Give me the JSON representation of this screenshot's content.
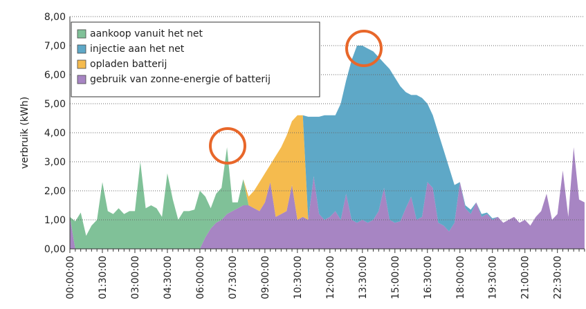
{
  "chart_data": {
    "type": "stacked_area",
    "y_label": "verbruik (kWh)",
    "categories": [
      "00:00:00",
      null,
      null,
      null,
      null,
      null,
      "01:30:00",
      null,
      null,
      null,
      null,
      null,
      "03:00:00",
      null,
      null,
      null,
      null,
      null,
      "04:30:00",
      null,
      null,
      null,
      null,
      null,
      "06:00:00",
      null,
      null,
      null,
      null,
      null,
      "07:30:00",
      null,
      null,
      null,
      null,
      null,
      "09:00:00",
      null,
      null,
      null,
      null,
      null,
      "10:30:00",
      null,
      null,
      null,
      null,
      null,
      "12:00:00",
      null,
      null,
      null,
      null,
      null,
      "13:30:00",
      null,
      null,
      null,
      null,
      null,
      "15:00:00",
      null,
      null,
      null,
      null,
      null,
      "16:30:00",
      null,
      null,
      null,
      null,
      null,
      "18:00:00",
      null,
      null,
      null,
      null,
      null,
      "19:30:00",
      null,
      null,
      null,
      null,
      null,
      "21:00:00",
      null,
      null,
      null,
      null,
      null,
      "22:30:00",
      null,
      null,
      null,
      null,
      null
    ],
    "series": [
      {
        "name": "aankoop vanuit het net",
        "color": "#80c198",
        "values": [
          0,
          0.95,
          1.25,
          0.45,
          0.8,
          1.0,
          2.3,
          1.3,
          1.2,
          1.4,
          1.2,
          1.3,
          1.3,
          3.0,
          1.4,
          1.5,
          1.4,
          1.1,
          2.6,
          1.7,
          1.0,
          1.3,
          1.3,
          1.35,
          2.0,
          1.4,
          0.7,
          1.0,
          1.1,
          2.3,
          0.3,
          0.2,
          0.9,
          0,
          0,
          0,
          0,
          0,
          0,
          0,
          0,
          0,
          0,
          0,
          0,
          0,
          0,
          0,
          0,
          0,
          0,
          0,
          0,
          0,
          0,
          0,
          0,
          0,
          0,
          0,
          0,
          0,
          0,
          0,
          0,
          0,
          0,
          0,
          0,
          0,
          0,
          0,
          0,
          0,
          0,
          0,
          0,
          0,
          0,
          0,
          0,
          0,
          0,
          0,
          0,
          0,
          0,
          0,
          0,
          0,
          0,
          0,
          0,
          0,
          0,
          0
        ]
      },
      {
        "name": "injectie aan het net",
        "color": "#5ea8c7",
        "values": [
          0,
          0,
          0,
          0,
          0,
          0,
          0,
          0,
          0,
          0,
          0,
          0,
          0,
          0,
          0,
          0,
          0,
          0,
          0,
          0,
          0,
          0,
          0,
          0,
          0,
          0,
          0,
          0,
          0,
          0,
          0,
          0,
          0,
          0,
          0,
          0,
          0,
          0,
          0,
          0,
          0,
          0,
          0,
          0,
          3.55,
          2.05,
          3.35,
          3.6,
          3.5,
          3.3,
          4.0,
          3.9,
          5.5,
          6.1,
          6.0,
          6.0,
          5.8,
          5.3,
          4.3,
          5.2,
          5.0,
          4.65,
          4.0,
          3.5,
          4.3,
          4.1,
          2.7,
          2.5,
          3.1,
          2.6,
          2.2,
          1.3,
          0,
          0.1,
          0.15,
          0,
          0.1,
          0.05,
          0.05,
          0,
          0,
          0,
          0,
          0,
          0,
          0,
          0,
          0,
          0,
          0,
          0,
          0,
          0,
          0,
          0,
          0
        ]
      },
      {
        "name": "opladen batterij",
        "color": "#f5bb4e",
        "values": [
          0,
          0,
          0,
          0,
          0,
          0,
          0,
          0,
          0,
          0,
          0,
          0,
          0,
          0,
          0,
          0,
          0,
          0,
          0,
          0,
          0,
          0,
          0,
          0,
          0,
          0,
          0,
          0,
          0,
          0,
          0,
          0,
          0,
          0.3,
          0.6,
          1.0,
          1.0,
          0.6,
          2.1,
          2.3,
          2.6,
          2.2,
          3.6,
          3.5,
          0,
          0,
          0,
          0,
          0,
          0,
          0,
          0,
          0,
          0,
          0,
          0,
          0,
          0,
          0,
          0,
          0,
          0,
          0,
          0,
          0,
          0,
          0,
          0,
          0,
          0,
          0,
          0,
          0,
          0,
          0,
          0,
          0,
          0,
          0,
          0,
          0,
          0,
          0,
          0,
          0,
          0,
          0,
          0,
          0,
          0,
          0,
          0,
          0,
          0,
          0,
          0
        ]
      },
      {
        "name": "gebruik van zonne-energie of batterij",
        "color": "#a785c3",
        "values": [
          1.1,
          0,
          0,
          0,
          0,
          0,
          0,
          0,
          0,
          0,
          0,
          0,
          0,
          0,
          0,
          0,
          0,
          0,
          0,
          0,
          0,
          0,
          0,
          0,
          0,
          0.4,
          0.7,
          0.9,
          1.0,
          1.2,
          1.3,
          1.4,
          1.5,
          1.5,
          1.4,
          1.3,
          1.6,
          2.3,
          1.1,
          1.2,
          1.3,
          2.2,
          1.0,
          1.1,
          1.0,
          2.5,
          1.2,
          1.0,
          1.1,
          1.3,
          1.0,
          1.9,
          1.0,
          0.9,
          1.0,
          0.9,
          1.0,
          1.3,
          2.1,
          1.0,
          0.9,
          0.95,
          1.4,
          1.8,
          1.0,
          1.1,
          2.3,
          2.1,
          0.9,
          0.8,
          0.6,
          0.9,
          2.3,
          1.4,
          1.2,
          1.6,
          1.1,
          1.2,
          1.0,
          1.1,
          0.9,
          1.0,
          1.1,
          0.9,
          1.0,
          0.8,
          1.1,
          1.3,
          1.9,
          1.0,
          1.2,
          2.7,
          1.1,
          3.5,
          1.7,
          1.6
        ]
      }
    ],
    "stack_order": [
      3,
      0,
      2,
      1
    ],
    "ylim": [
      0,
      8
    ],
    "yticks": [
      {
        "value": 0,
        "label": "0,00"
      },
      {
        "value": 1,
        "label": "1,00"
      },
      {
        "value": 2,
        "label": "2,00"
      },
      {
        "value": 3,
        "label": "3,00"
      },
      {
        "value": 4,
        "label": "4,00"
      },
      {
        "value": 5,
        "label": "5,00"
      },
      {
        "value": 6,
        "label": "6,00"
      },
      {
        "value": 7,
        "label": "7,00"
      },
      {
        "value": 8,
        "label": "8,00"
      }
    ],
    "grid": true,
    "legend": "top-left"
  }
}
